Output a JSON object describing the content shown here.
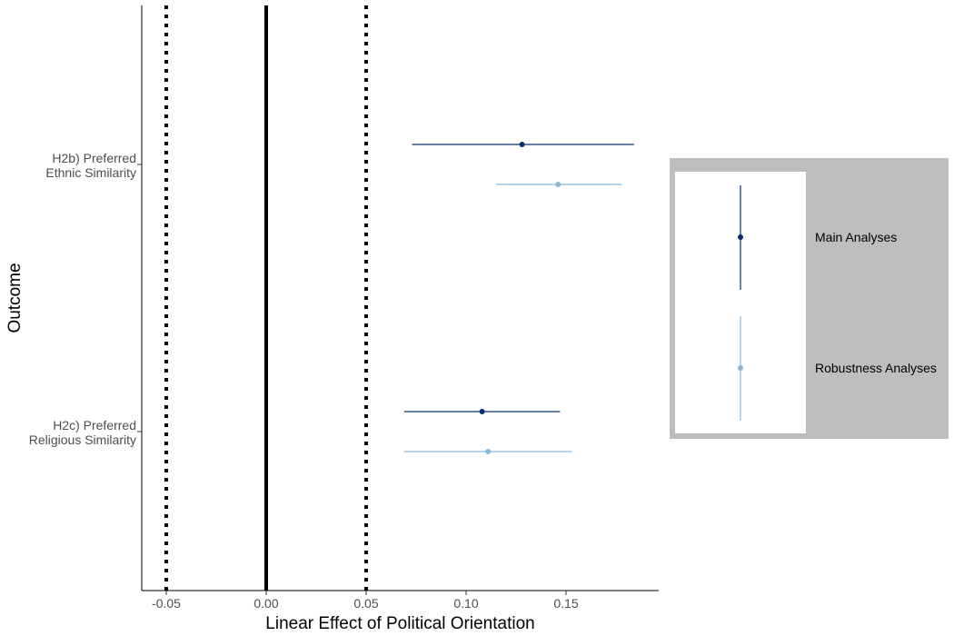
{
  "chart_data": {
    "type": "forest",
    "xlabel": "Linear Effect of Political Orientation",
    "ylabel": "Outcome",
    "xlim": [
      -0.062,
      0.196
    ],
    "x_ticks": [
      "-0.05",
      "0.00",
      "0.05",
      "0.10",
      "0.15"
    ],
    "reference_lines": [
      {
        "x": -0.05,
        "style": "dotted"
      },
      {
        "x": 0.0,
        "style": "solid"
      },
      {
        "x": 0.05,
        "style": "dotted"
      }
    ],
    "categories": [
      {
        "lines": [
          "H2b) Preferred",
          "Ethnic Similarity"
        ]
      },
      {
        "lines": [
          "H2c) Preferred",
          "Religious Similarity"
        ]
      }
    ],
    "series": [
      {
        "name": "Main Analyses",
        "color": "#08306b",
        "points": [
          {
            "estimate": 0.128,
            "lower": 0.073,
            "upper": 0.184
          },
          {
            "estimate": 0.108,
            "lower": 0.069,
            "upper": 0.147
          }
        ]
      },
      {
        "name": "Robustness Analyses",
        "color": "#8ab7d8",
        "points": [
          {
            "estimate": 0.146,
            "lower": 0.115,
            "upper": 0.178
          },
          {
            "estimate": 0.111,
            "lower": 0.069,
            "upper": 0.153
          }
        ]
      }
    ],
    "legend": {
      "position": "right",
      "background": "#bebebe",
      "key_background": "#ffffff"
    }
  }
}
